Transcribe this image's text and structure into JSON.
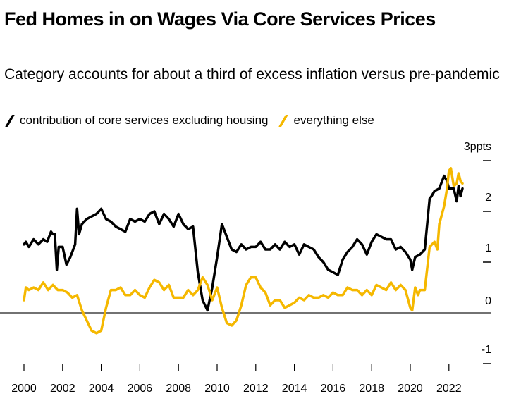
{
  "chart_data": {
    "type": "line",
    "title": "Fed Homes in on Wages Via Core Services Prices",
    "subtitle": "Category accounts for about a third of excess inflation versus pre-pandemic",
    "xlabel": "",
    "ylabel": "",
    "unit_label": "3ppts",
    "xlim": [
      2000,
      2023
    ],
    "ylim": [
      -1,
      3
    ],
    "x_ticks": [
      2000,
      2002,
      2004,
      2006,
      2008,
      2010,
      2012,
      2014,
      2016,
      2018,
      2020,
      2022
    ],
    "x_tick_labels": [
      "2000",
      "2002",
      "2004",
      "2006",
      "2008",
      "2010",
      "2012",
      "2014",
      "2016",
      "2018",
      "2020",
      "2022"
    ],
    "y_ticks": [
      -1,
      0,
      1,
      2,
      3
    ],
    "y_tick_labels": [
      "-1",
      "0",
      "1",
      "2",
      "3ppts"
    ],
    "zero_line": true,
    "grid": false,
    "legend_position": "top-left",
    "series": [
      {
        "name": "contribution of core services excluding housing",
        "color": "#000000",
        "x": [
          2000.0,
          2000.1,
          2000.25,
          2000.5,
          2000.75,
          2001.0,
          2001.2,
          2001.4,
          2001.5,
          2001.6,
          2001.7,
          2001.8,
          2002.0,
          2002.2,
          2002.4,
          2002.5,
          2002.65,
          2002.75,
          2002.85,
          2003.0,
          2003.25,
          2003.5,
          2003.75,
          2004.0,
          2004.25,
          2004.5,
          2004.75,
          2005.0,
          2005.25,
          2005.5,
          2005.75,
          2006.0,
          2006.25,
          2006.5,
          2006.75,
          2007.0,
          2007.25,
          2007.5,
          2007.75,
          2008.0,
          2008.25,
          2008.5,
          2008.75,
          2009.0,
          2009.25,
          2009.5,
          2009.75,
          2010.0,
          2010.25,
          2010.5,
          2010.75,
          2011.0,
          2011.25,
          2011.5,
          2011.75,
          2012.0,
          2012.25,
          2012.5,
          2012.75,
          2013.0,
          2013.25,
          2013.5,
          2013.75,
          2014.0,
          2014.25,
          2014.5,
          2014.75,
          2015.0,
          2015.25,
          2015.5,
          2015.75,
          2016.0,
          2016.25,
          2016.5,
          2016.75,
          2017.0,
          2017.25,
          2017.5,
          2017.75,
          2018.0,
          2018.25,
          2018.5,
          2018.75,
          2019.0,
          2019.25,
          2019.5,
          2019.75,
          2020.0,
          2020.1,
          2020.25,
          2020.5,
          2020.75,
          2021.0,
          2021.1,
          2021.25,
          2021.5,
          2021.75,
          2021.9,
          2022.0,
          2022.1,
          2022.25,
          2022.4,
          2022.5,
          2022.6,
          2022.7
        ],
        "y": [
          1.35,
          1.4,
          1.3,
          1.45,
          1.35,
          1.45,
          1.4,
          1.6,
          1.55,
          1.55,
          0.85,
          1.3,
          1.3,
          0.95,
          1.1,
          1.2,
          1.35,
          2.05,
          1.55,
          1.75,
          1.85,
          1.9,
          1.95,
          2.05,
          1.85,
          1.8,
          1.7,
          1.65,
          1.6,
          1.85,
          1.8,
          1.85,
          1.8,
          1.95,
          2.0,
          1.75,
          1.95,
          1.85,
          1.7,
          1.95,
          1.75,
          1.65,
          1.7,
          0.8,
          0.25,
          0.05,
          0.5,
          1.1,
          1.75,
          1.5,
          1.25,
          1.2,
          1.35,
          1.25,
          1.3,
          1.3,
          1.4,
          1.25,
          1.25,
          1.35,
          1.25,
          1.4,
          1.3,
          1.35,
          1.15,
          1.35,
          1.3,
          1.25,
          1.1,
          1.0,
          0.85,
          0.8,
          0.75,
          1.05,
          1.2,
          1.3,
          1.45,
          1.35,
          1.15,
          1.4,
          1.55,
          1.5,
          1.45,
          1.45,
          1.25,
          1.3,
          1.2,
          1.05,
          0.85,
          1.1,
          1.15,
          1.25,
          2.25,
          2.3,
          2.4,
          2.45,
          2.7,
          2.6,
          2.45,
          2.45,
          2.45,
          2.2,
          2.5,
          2.3,
          2.45
        ]
      },
      {
        "name": "everything else",
        "color": "#f5b800",
        "x": [
          2000.0,
          2000.1,
          2000.25,
          2000.5,
          2000.75,
          2001.0,
          2001.25,
          2001.5,
          2001.75,
          2002.0,
          2002.25,
          2002.5,
          2002.75,
          2003.0,
          2003.25,
          2003.5,
          2003.75,
          2004.0,
          2004.25,
          2004.5,
          2004.75,
          2005.0,
          2005.25,
          2005.5,
          2005.75,
          2006.0,
          2006.25,
          2006.5,
          2006.75,
          2007.0,
          2007.25,
          2007.5,
          2007.75,
          2008.0,
          2008.25,
          2008.5,
          2008.75,
          2009.0,
          2009.25,
          2009.5,
          2009.75,
          2010.0,
          2010.25,
          2010.5,
          2010.75,
          2011.0,
          2011.25,
          2011.5,
          2011.75,
          2012.0,
          2012.25,
          2012.5,
          2012.75,
          2013.0,
          2013.25,
          2013.5,
          2013.75,
          2014.0,
          2014.25,
          2014.5,
          2014.75,
          2015.0,
          2015.25,
          2015.5,
          2015.75,
          2016.0,
          2016.25,
          2016.5,
          2016.75,
          2017.0,
          2017.25,
          2017.5,
          2017.75,
          2018.0,
          2018.25,
          2018.5,
          2018.75,
          2019.0,
          2019.25,
          2019.5,
          2019.75,
          2020.0,
          2020.1,
          2020.25,
          2020.4,
          2020.5,
          2020.75,
          2021.0,
          2021.25,
          2021.4,
          2021.5,
          2021.75,
          2021.9,
          2022.0,
          2022.1,
          2022.25,
          2022.4,
          2022.5,
          2022.6,
          2022.7
        ],
        "y": [
          0.25,
          0.5,
          0.45,
          0.5,
          0.45,
          0.6,
          0.45,
          0.55,
          0.45,
          0.45,
          0.4,
          0.3,
          0.35,
          0.05,
          -0.15,
          -0.35,
          -0.4,
          -0.35,
          0.1,
          0.45,
          0.45,
          0.5,
          0.35,
          0.35,
          0.45,
          0.35,
          0.3,
          0.5,
          0.65,
          0.6,
          0.45,
          0.55,
          0.3,
          0.3,
          0.3,
          0.45,
          0.35,
          0.45,
          0.7,
          0.55,
          0.25,
          0.5,
          0.1,
          -0.2,
          -0.25,
          -0.15,
          0.15,
          0.55,
          0.7,
          0.7,
          0.5,
          0.4,
          0.15,
          0.25,
          0.25,
          0.1,
          0.15,
          0.2,
          0.3,
          0.25,
          0.35,
          0.3,
          0.3,
          0.35,
          0.3,
          0.4,
          0.35,
          0.35,
          0.5,
          0.45,
          0.45,
          0.35,
          0.45,
          0.35,
          0.55,
          0.5,
          0.45,
          0.6,
          0.45,
          0.55,
          0.45,
          0.1,
          0.05,
          0.5,
          0.35,
          0.45,
          0.45,
          1.3,
          1.4,
          1.25,
          1.75,
          2.1,
          2.45,
          2.8,
          2.85,
          2.5,
          2.55,
          2.75,
          2.6,
          2.55
        ]
      }
    ]
  }
}
